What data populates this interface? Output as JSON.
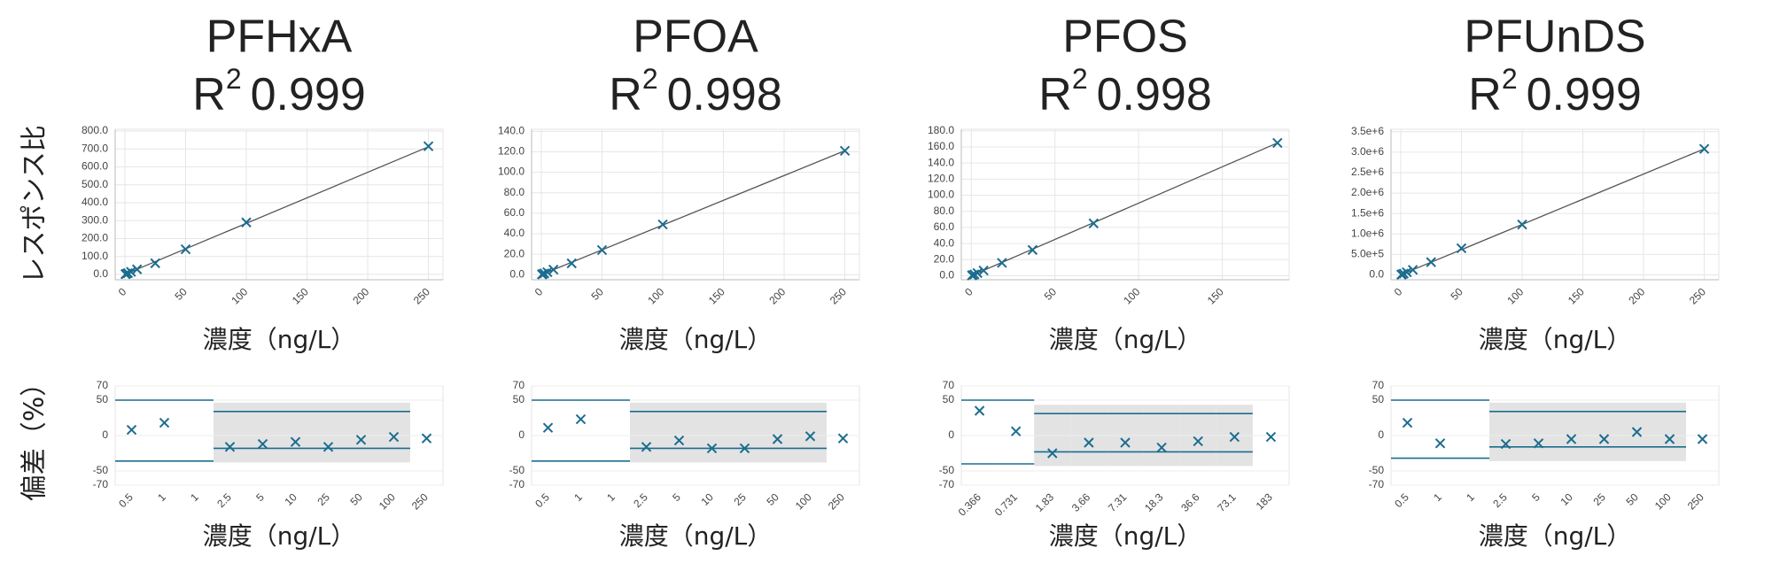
{
  "chart_data": [
    {
      "type": "scatter",
      "title": "PFHxA",
      "r_symbol": "R",
      "r_exponent": "2",
      "r2": 0.999,
      "ylabel": "レスポンス比",
      "xlabel": "濃度（ng/L）",
      "x": [
        0.5,
        1,
        1,
        2.5,
        5,
        10,
        25,
        50,
        100,
        250
      ],
      "values": [
        1.4,
        2.9,
        2.9,
        7,
        14,
        28,
        62,
        140,
        290,
        715
      ],
      "fit": {
        "x": [
          0,
          250
        ],
        "values": [
          0,
          712
        ]
      },
      "color": "#1b6d8f",
      "fit_color": "#555555",
      "xlim": [
        -8,
        262
      ],
      "xticks": [
        0,
        50,
        100,
        150,
        200,
        250
      ],
      "ylim": [
        -30,
        810
      ],
      "yticks": [
        {
          "value": 0,
          "label": "0.0"
        },
        {
          "value": 100,
          "label": "100.0"
        },
        {
          "value": 200,
          "label": "200.0"
        },
        {
          "value": 300,
          "label": "300.0"
        },
        {
          "value": 400,
          "label": "400.0"
        },
        {
          "value": 500,
          "label": "500.0"
        },
        {
          "value": 600,
          "label": "600.0"
        },
        {
          "value": 700,
          "label": "700.0"
        },
        {
          "value": 800,
          "label": "800.0"
        }
      ],
      "grid": true
    },
    {
      "type": "dot",
      "ylabel": "偏差（%）",
      "xlabel": "濃度（ng/L）",
      "categories": [
        "0.5",
        "1",
        "1",
        "2.5",
        "5",
        "10",
        "25",
        "50",
        "100",
        "250"
      ],
      "values": [
        8,
        18,
        null,
        -16,
        -12,
        -9,
        -16,
        -6,
        -2,
        -4
      ],
      "upper": [
        50,
        50,
        50,
        34,
        34,
        34,
        34,
        34,
        34,
        null
      ],
      "lower": [
        -36,
        -36,
        -36,
        -18,
        -18,
        -18,
        -18,
        -18,
        -18,
        null
      ],
      "color": "#1b6d8f",
      "ylim": [
        -70,
        70
      ],
      "yticks": [
        70,
        50,
        0,
        -50,
        -70
      ],
      "grid": true
    },
    {
      "type": "scatter",
      "title": "PFOA",
      "r_symbol": "R",
      "r_exponent": "2",
      "r2": 0.998,
      "xlabel": "濃度（ng/L）",
      "x": [
        0.5,
        1,
        1,
        2.5,
        5,
        10,
        25,
        50,
        100,
        250
      ],
      "values": [
        0.24,
        0.49,
        0.49,
        1.2,
        2.4,
        4.9,
        11,
        24,
        49,
        121
      ],
      "fit": {
        "x": [
          0,
          250
        ],
        "values": [
          0,
          121
        ]
      },
      "color": "#1b6d8f",
      "fit_color": "#555555",
      "xlim": [
        -8,
        262
      ],
      "xticks": [
        0,
        50,
        100,
        150,
        200,
        250
      ],
      "ylim": [
        -5,
        142
      ],
      "yticks": [
        {
          "value": 0,
          "label": "0.0"
        },
        {
          "value": 20,
          "label": "20.0"
        },
        {
          "value": 40,
          "label": "40.0"
        },
        {
          "value": 60,
          "label": "60.0"
        },
        {
          "value": 80,
          "label": "80.0"
        },
        {
          "value": 100,
          "label": "100.0"
        },
        {
          "value": 120,
          "label": "120.0"
        },
        {
          "value": 140,
          "label": "140.0"
        }
      ],
      "grid": true
    },
    {
      "type": "dot",
      "xlabel": "濃度（ng/L）",
      "categories": [
        "0.5",
        "1",
        "1",
        "2.5",
        "5",
        "10",
        "25",
        "50",
        "100",
        "250"
      ],
      "values": [
        11,
        23,
        null,
        -16,
        -7,
        -18,
        -18,
        -5,
        -1,
        -4
      ],
      "upper": [
        50,
        50,
        50,
        34,
        34,
        34,
        34,
        34,
        34,
        null
      ],
      "lower": [
        -36,
        -36,
        -36,
        -18,
        -18,
        -18,
        -18,
        -18,
        -18,
        null
      ],
      "color": "#1b6d8f",
      "ylim": [
        -70,
        70
      ],
      "yticks": [
        70,
        50,
        0,
        -50,
        -70
      ],
      "grid": true
    },
    {
      "type": "scatter",
      "title": "PFOS",
      "r_symbol": "R",
      "r_exponent": "2",
      "r2": 0.998,
      "xlabel": "濃度（ng/L）",
      "x": [
        0.366,
        0.731,
        1.83,
        3.66,
        7.31,
        18.3,
        36.6,
        73.1,
        183
      ],
      "values": [
        0.4,
        0.7,
        1.6,
        3.3,
        6.5,
        16,
        32,
        65,
        165
      ],
      "fit": {
        "x": [
          0,
          183
        ],
        "values": [
          0,
          165
        ]
      },
      "color": "#1b6d8f",
      "fit_color": "#555555",
      "xlim": [
        -6,
        190
      ],
      "xticks": [
        0,
        50,
        100,
        150
      ],
      "ylim": [
        -5,
        182
      ],
      "yticks": [
        {
          "value": 0,
          "label": "0.0"
        },
        {
          "value": 20,
          "label": "20.0"
        },
        {
          "value": 40,
          "label": "40.0"
        },
        {
          "value": 60,
          "label": "60.0"
        },
        {
          "value": 80,
          "label": "80.0"
        },
        {
          "value": 100,
          "label": "100.0"
        },
        {
          "value": 120,
          "label": "120.0"
        },
        {
          "value": 140,
          "label": "140.0"
        },
        {
          "value": 160,
          "label": "160.0"
        },
        {
          "value": 180,
          "label": "180.0"
        }
      ],
      "grid": true
    },
    {
      "type": "dot",
      "xlabel": "濃度（ng/L）",
      "categories": [
        "0.366",
        "0.731",
        "1.83",
        "3.66",
        "7.31",
        "18.3",
        "36.6",
        "73.1",
        "183"
      ],
      "values": [
        35,
        6,
        -25,
        -10,
        -10,
        -17,
        -8,
        -2,
        -2
      ],
      "upper": [
        50,
        50,
        31,
        31,
        31,
        31,
        31,
        31,
        null
      ],
      "lower": [
        -40,
        -40,
        -23,
        -23,
        -23,
        -23,
        -23,
        -23,
        null
      ],
      "color": "#1b6d8f",
      "ylim": [
        -70,
        70
      ],
      "yticks": [
        70,
        50,
        0,
        -50,
        -70
      ],
      "grid": true
    },
    {
      "type": "scatter",
      "title": "PFUnDS",
      "r_symbol": "R",
      "r_exponent": "2",
      "r2": 0.999,
      "xlabel": "濃度（ng/L）",
      "x": [
        0.5,
        1,
        1,
        2.5,
        5,
        10,
        25,
        50,
        100,
        250
      ],
      "values": [
        6000,
        12000,
        12000,
        31000,
        62000,
        123000,
        310000,
        650000,
        1230000,
        3080000
      ],
      "fit": {
        "x": [
          0,
          250
        ],
        "values": [
          0,
          3080000
        ]
      },
      "color": "#1b6d8f",
      "fit_color": "#555555",
      "xlim": [
        -8,
        262
      ],
      "xticks": [
        0,
        50,
        100,
        150,
        200,
        250
      ],
      "ylim": [
        -120000,
        3560000
      ],
      "yticks": [
        {
          "value": 0,
          "label": "0.0"
        },
        {
          "value": 500000,
          "label": "5.0e+5"
        },
        {
          "value": 1000000,
          "label": "1.0e+6"
        },
        {
          "value": 1500000,
          "label": "1.5e+6"
        },
        {
          "value": 2000000,
          "label": "2.0e+6"
        },
        {
          "value": 2500000,
          "label": "2.5e+6"
        },
        {
          "value": 3000000,
          "label": "3.0e+6"
        },
        {
          "value": 3500000,
          "label": "3.5e+6"
        }
      ],
      "grid": true
    },
    {
      "type": "dot",
      "xlabel": "濃度（ng/L）",
      "categories": [
        "0.5",
        "1",
        "1",
        "2.5",
        "5",
        "10",
        "25",
        "50",
        "100",
        "250"
      ],
      "values": [
        18,
        -11,
        null,
        -12,
        -11,
        -5,
        -5,
        5,
        -5,
        -5
      ],
      "upper": [
        50,
        50,
        50,
        34,
        34,
        34,
        34,
        34,
        34,
        null
      ],
      "lower": [
        -32,
        -32,
        -32,
        -16,
        -16,
        -16,
        -16,
        -16,
        -16,
        null
      ],
      "color": "#1b6d8f",
      "ylim": [
        -70,
        70
      ],
      "yticks": [
        70,
        50,
        0,
        -50,
        -70
      ],
      "grid": true
    }
  ]
}
